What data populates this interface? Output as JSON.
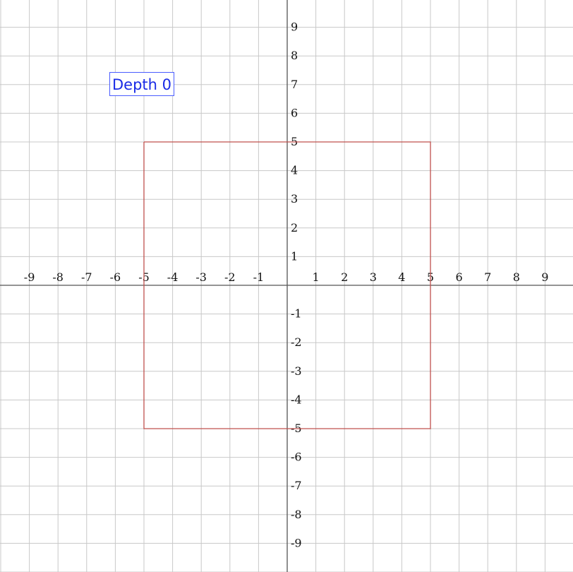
{
  "label": {
    "text": "Depth 0"
  },
  "colors": {
    "grid": "#c8c8c8",
    "axis": "#555555",
    "shape": "#c0504d",
    "label_text": "#1a2be6",
    "label_border": "#4a5cff"
  },
  "chart_data": {
    "type": "line",
    "title": "",
    "xlabel": "",
    "ylabel": "",
    "xlim": [
      -10,
      10
    ],
    "ylim": [
      -10,
      10
    ],
    "grid": true,
    "x_ticks": [
      -9,
      -8,
      -7,
      -6,
      -5,
      -4,
      -3,
      -2,
      -1,
      1,
      2,
      3,
      4,
      5,
      6,
      7,
      8,
      9
    ],
    "y_ticks": [
      -9,
      -8,
      -7,
      -6,
      -5,
      -4,
      -3,
      -2,
      -1,
      1,
      2,
      3,
      4,
      5,
      6,
      7,
      8,
      9
    ],
    "series": [
      {
        "x": [
          -5,
          5,
          5,
          -5,
          -5
        ],
        "y": [
          5,
          5,
          -5,
          -5,
          5
        ]
      }
    ]
  }
}
